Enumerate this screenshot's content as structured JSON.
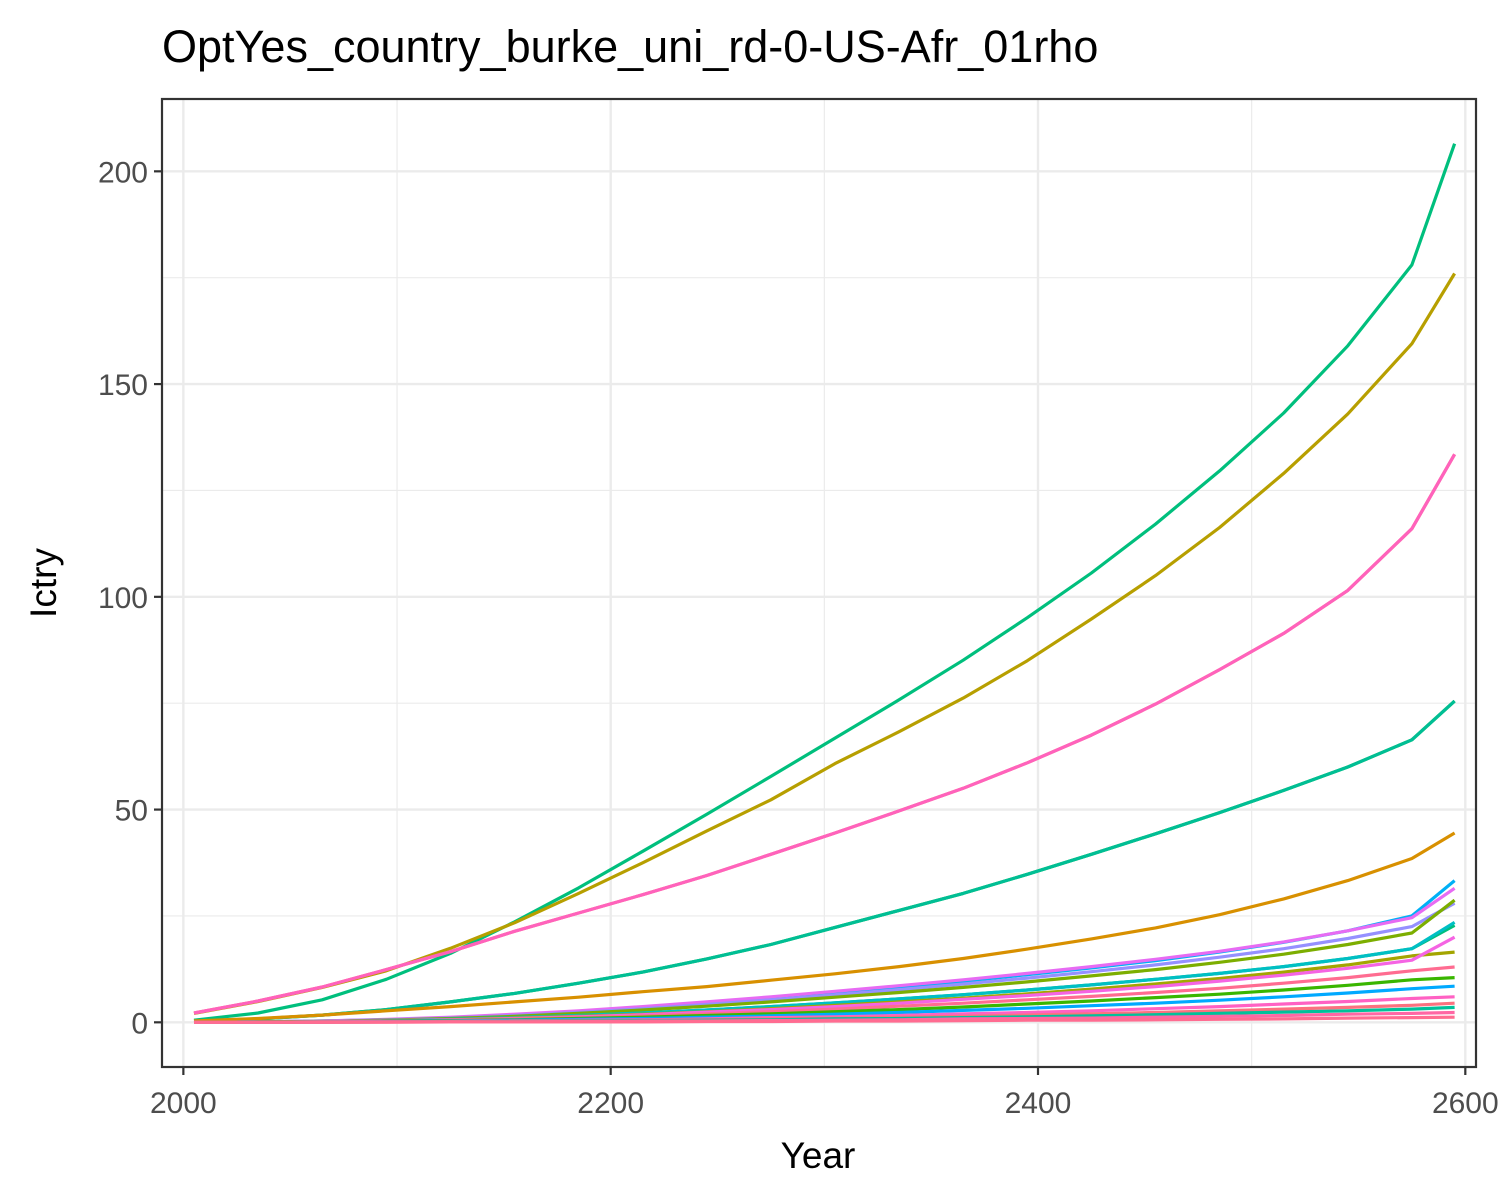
{
  "chart_data": {
    "type": "line",
    "title": "OptYes_country_burke_uni_rd-0-US-Afr_01rho",
    "xlabel": "Year",
    "ylabel": "Ictry",
    "xlim": [
      1990,
      2605
    ],
    "ylim": [
      -10.5,
      217
    ],
    "x_ticks": [
      2000,
      2200,
      2400,
      2600
    ],
    "y_ticks": [
      0,
      50,
      100,
      150,
      200
    ],
    "grid": true,
    "legend": "none",
    "x": [
      2005,
      2035,
      2065,
      2095,
      2125,
      2155,
      2185,
      2215,
      2245,
      2275,
      2305,
      2335,
      2365,
      2395,
      2425,
      2455,
      2485,
      2515,
      2545,
      2575,
      2595
    ],
    "series": [
      {
        "color": "#00BF7D",
        "values": [
          0.5,
          2.2,
          5.3,
          10.1,
          16.2,
          23.6,
          31.6,
          40.2,
          48.9,
          57.8,
          66.8,
          75.8,
          85.1,
          95.1,
          105.6,
          117.1,
          129.6,
          143.2,
          159.0,
          178.0,
          206.5
        ]
      },
      {
        "color": "#B79F00",
        "values": [
          2.1,
          4.9,
          8.2,
          12.1,
          17.4,
          23.4,
          30.3,
          37.5,
          45.0,
          52.3,
          60.8,
          68.3,
          76.2,
          85.0,
          94.8,
          105.0,
          116.3,
          129.0,
          143.0,
          159.5,
          176.0
        ]
      },
      {
        "color": "#F8766D",
        "values": [
          2.2,
          5.0,
          8.3,
          12.4,
          16.6,
          21.4,
          25.7,
          30.0,
          34.5,
          39.5,
          44.5,
          49.7,
          55.0,
          61.0,
          67.5,
          74.8,
          82.9,
          91.4,
          101.5,
          116.0,
          133.5
        ]
      },
      {
        "color": "#FF62BC",
        "values": [
          2.2,
          5.0,
          8.3,
          12.4,
          16.6,
          21.4,
          25.7,
          30.0,
          34.5,
          39.5,
          44.5,
          49.7,
          55.0,
          61.0,
          67.5,
          74.8,
          82.9,
          91.4,
          101.5,
          116.0,
          133.5
        ]
      },
      {
        "color": "#00BA38",
        "values": [
          0.3,
          0.8,
          1.7,
          3.0,
          4.8,
          6.8,
          9.2,
          11.8,
          14.9,
          18.3,
          22.3,
          26.3,
          30.3,
          34.8,
          39.5,
          44.3,
          49.3,
          54.5,
          60.0,
          66.4,
          75.5
        ]
      },
      {
        "color": "#00BE95",
        "values": [
          0.3,
          0.8,
          1.7,
          3.0,
          4.8,
          6.8,
          9.2,
          11.8,
          14.9,
          18.3,
          22.3,
          26.3,
          30.3,
          34.8,
          39.5,
          44.3,
          49.3,
          54.5,
          60.0,
          66.4,
          75.5
        ]
      },
      {
        "color": "#D89000",
        "values": [
          0.3,
          0.9,
          1.7,
          2.7,
          3.7,
          4.8,
          5.9,
          7.2,
          8.4,
          9.9,
          11.4,
          13.1,
          15.0,
          17.2,
          19.6,
          22.2,
          25.3,
          29.0,
          33.3,
          38.5,
          44.5
        ]
      },
      {
        "color": "#00B0F6",
        "values": [
          0.0,
          0.1,
          0.3,
          0.6,
          1.1,
          1.7,
          2.5,
          3.5,
          4.6,
          5.8,
          7.0,
          8.3,
          9.7,
          11.2,
          12.8,
          14.5,
          16.5,
          18.8,
          21.5,
          25.0,
          33.3
        ]
      },
      {
        "color": "#E76BF3",
        "values": [
          0.0,
          0.1,
          0.3,
          0.7,
          1.2,
          1.9,
          2.7,
          3.7,
          4.8,
          6.0,
          7.3,
          8.6,
          10.0,
          11.5,
          13.1,
          14.8,
          16.7,
          18.9,
          21.5,
          24.6,
          31.5
        ]
      },
      {
        "color": "#9590FF",
        "values": [
          0.0,
          0.1,
          0.3,
          0.6,
          1.0,
          1.6,
          2.3,
          3.2,
          4.2,
          5.3,
          6.5,
          7.7,
          9.0,
          10.4,
          11.9,
          13.5,
          15.3,
          17.3,
          19.7,
          22.5,
          28.0
        ]
      },
      {
        "color": "#7CAE00",
        "values": [
          0.0,
          0.1,
          0.2,
          0.5,
          0.9,
          1.4,
          2.1,
          2.9,
          3.8,
          4.8,
          5.9,
          7.0,
          8.2,
          9.5,
          10.9,
          12.4,
          14.1,
          16.0,
          18.3,
          21.0,
          28.7
        ]
      },
      {
        "color": "#00BF7D",
        "values": [
          0.0,
          0.1,
          0.2,
          0.4,
          0.7,
          1.1,
          1.6,
          2.2,
          2.9,
          3.7,
          4.6,
          5.5,
          6.5,
          7.6,
          8.8,
          10.1,
          11.5,
          13.1,
          15.0,
          17.3,
          22.8
        ]
      },
      {
        "color": "#00BFC4",
        "values": [
          0.0,
          0.1,
          0.2,
          0.4,
          0.7,
          1.1,
          1.6,
          2.2,
          2.9,
          3.7,
          4.6,
          5.5,
          6.5,
          7.6,
          8.8,
          10.1,
          11.5,
          13.1,
          15.0,
          17.3,
          23.5
        ]
      },
      {
        "color": "#A3A500",
        "values": [
          0.0,
          0.1,
          0.2,
          0.4,
          0.6,
          1.0,
          1.4,
          1.9,
          2.5,
          3.2,
          4.0,
          4.8,
          5.7,
          6.7,
          7.8,
          9.0,
          10.3,
          11.8,
          13.5,
          15.6,
          16.5
        ]
      },
      {
        "color": "#F564E3",
        "values": [
          0.0,
          0.1,
          0.2,
          0.4,
          0.6,
          0.9,
          1.3,
          1.8,
          2.4,
          3.0,
          3.7,
          4.5,
          5.4,
          6.3,
          7.3,
          8.4,
          9.7,
          11.1,
          12.7,
          14.6,
          20.0
        ]
      },
      {
        "color": "#FF6C91",
        "values": [
          0.0,
          0.1,
          0.2,
          0.3,
          0.5,
          0.8,
          1.1,
          1.5,
          2.0,
          2.5,
          3.1,
          3.8,
          4.5,
          5.3,
          6.1,
          7.0,
          8.0,
          9.2,
          10.5,
          12.1,
          13.0
        ]
      },
      {
        "color": "#39B600",
        "values": [
          0.0,
          0.1,
          0.1,
          0.3,
          0.4,
          0.6,
          0.9,
          1.2,
          1.6,
          2.0,
          2.5,
          3.0,
          3.6,
          4.3,
          5.0,
          5.8,
          6.6,
          7.6,
          8.7,
          10.0,
          10.5
        ]
      },
      {
        "color": "#00A9FF",
        "values": [
          0.0,
          0.0,
          0.1,
          0.2,
          0.3,
          0.5,
          0.7,
          0.9,
          1.2,
          1.5,
          1.9,
          2.3,
          2.8,
          3.3,
          3.9,
          4.5,
          5.2,
          6.0,
          6.9,
          7.9,
          8.5
        ]
      },
      {
        "color": "#FF61C3",
        "values": [
          0.0,
          0.0,
          0.1,
          0.1,
          0.2,
          0.3,
          0.5,
          0.6,
          0.8,
          1.1,
          1.3,
          1.6,
          2.0,
          2.3,
          2.7,
          3.2,
          3.7,
          4.3,
          4.9,
          5.6,
          6.0
        ]
      },
      {
        "color": "#FC717F",
        "values": [
          0.0,
          0.0,
          0.1,
          0.1,
          0.2,
          0.3,
          0.4,
          0.5,
          0.6,
          0.8,
          1.0,
          1.2,
          1.4,
          1.7,
          2.0,
          2.3,
          2.7,
          3.1,
          3.5,
          4.0,
          4.5
        ]
      },
      {
        "color": "#00C19A",
        "values": [
          0.0,
          0.0,
          0.0,
          0.1,
          0.1,
          0.2,
          0.3,
          0.4,
          0.5,
          0.6,
          0.8,
          0.9,
          1.1,
          1.3,
          1.5,
          1.8,
          2.1,
          2.4,
          2.7,
          3.1,
          3.5
        ]
      },
      {
        "color": "#FF67A4",
        "values": [
          0.0,
          0.0,
          0.0,
          0.1,
          0.1,
          0.1,
          0.2,
          0.3,
          0.3,
          0.4,
          0.5,
          0.6,
          0.8,
          0.9,
          1.0,
          1.2,
          1.4,
          1.6,
          1.9,
          2.1,
          2.3
        ]
      },
      {
        "color": "#FF6C91",
        "values": [
          0.0,
          0.0,
          0.0,
          0.0,
          0.1,
          0.1,
          0.1,
          0.1,
          0.2,
          0.2,
          0.3,
          0.3,
          0.4,
          0.5,
          0.5,
          0.6,
          0.7,
          0.8,
          1.0,
          1.1,
          1.2
        ]
      }
    ]
  }
}
